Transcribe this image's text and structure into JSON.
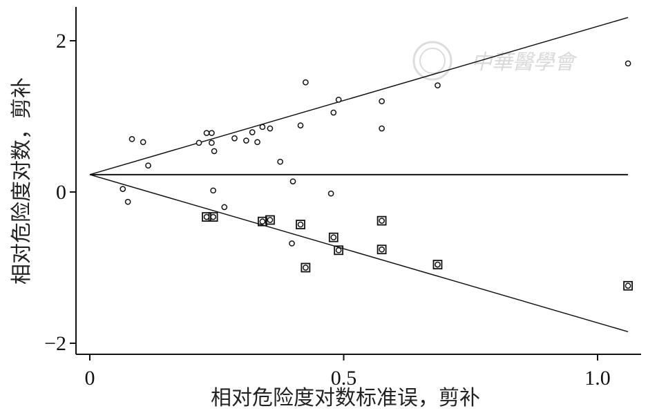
{
  "chart_data": {
    "type": "scatter",
    "title": "",
    "xlabel": "相对危险度对数标准误，剪补",
    "ylabel": "相对危险度对数，剪补",
    "xlim": [
      0,
      1.1
    ],
    "ylim": [
      -2.05,
      2.2
    ],
    "x_ticks": [
      0,
      0.5,
      1.0
    ],
    "x_tick_labels": [
      "0",
      "0.5",
      "1.0"
    ],
    "y_ticks": [
      2,
      0,
      -2
    ],
    "y_tick_labels": [
      "2",
      "0",
      "−2"
    ],
    "grid": false,
    "pooled_estimate": 0.23,
    "pseudo_ci": {
      "slope": 1.96,
      "x_end": 1.06
    },
    "series": [
      {
        "marker": "circle",
        "points": [
          [
            0.065,
            0.04
          ],
          [
            0.075,
            -0.13
          ],
          [
            0.083,
            0.7
          ],
          [
            0.105,
            0.66
          ],
          [
            0.115,
            0.35
          ],
          [
            0.215,
            0.65
          ],
          [
            0.23,
            0.78
          ],
          [
            0.24,
            0.78
          ],
          [
            0.24,
            0.65
          ],
          [
            0.243,
            0.02
          ],
          [
            0.245,
            0.54
          ],
          [
            0.265,
            -0.2
          ],
          [
            0.285,
            0.71
          ],
          [
            0.308,
            0.68
          ],
          [
            0.32,
            0.79
          ],
          [
            0.33,
            0.66
          ],
          [
            0.34,
            0.86
          ],
          [
            0.355,
            0.84
          ],
          [
            0.375,
            0.4
          ],
          [
            0.4,
            0.14
          ],
          [
            0.415,
            0.88
          ],
          [
            0.425,
            1.45
          ],
          [
            0.475,
            -0.02
          ],
          [
            0.48,
            1.05
          ],
          [
            0.49,
            1.22
          ],
          [
            0.575,
            1.2
          ],
          [
            0.575,
            0.84
          ],
          [
            0.685,
            1.41
          ],
          [
            1.06,
            1.7
          ],
          [
            0.398,
            -0.68
          ],
          [
            0.23,
            -0.33
          ],
          [
            0.243,
            -0.33
          ],
          [
            0.34,
            -0.39
          ],
          [
            0.355,
            -0.37
          ],
          [
            0.415,
            -0.43
          ],
          [
            0.425,
            -1.0
          ],
          [
            0.48,
            -0.6
          ],
          [
            0.49,
            -0.77
          ],
          [
            0.575,
            -0.38
          ],
          [
            0.575,
            -0.76
          ],
          [
            0.685,
            -0.96
          ],
          [
            1.06,
            -1.24
          ]
        ]
      },
      {
        "marker": "square",
        "points": [
          [
            0.23,
            -0.33
          ],
          [
            0.243,
            -0.33
          ],
          [
            0.34,
            -0.39
          ],
          [
            0.355,
            -0.37
          ],
          [
            0.415,
            -0.43
          ],
          [
            0.425,
            -1.0
          ],
          [
            0.48,
            -0.6
          ],
          [
            0.49,
            -0.77
          ],
          [
            0.575,
            -0.38
          ],
          [
            0.575,
            -0.76
          ],
          [
            0.685,
            -0.96
          ],
          [
            1.06,
            -1.24
          ]
        ]
      }
    ]
  }
}
